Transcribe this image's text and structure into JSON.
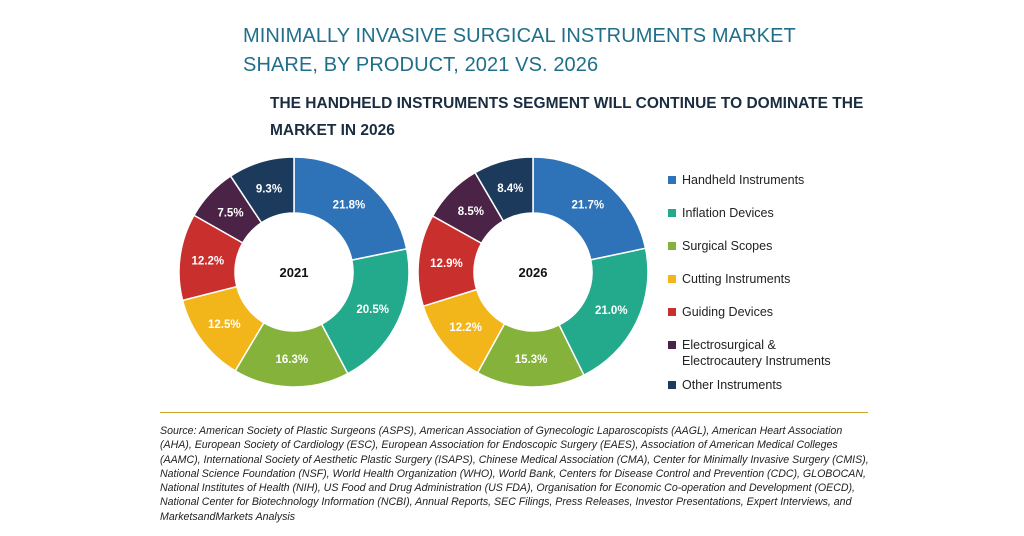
{
  "title": "MINIMALLY INVASIVE SURGICAL INSTRUMENTS MARKET SHARE, BY PRODUCT, 2021 VS. 2026",
  "subtitle": "THE HANDHELD INSTRUMENTS SEGMENT WILL CONTINUE TO DOMINATE THE MARKET IN 2026",
  "source": "Source: American Society of Plastic Surgeons (ASPS), American Association of Gynecologic Laparoscopists (AAGL), American Heart Association (AHA), European Society of Cardiology (ESC), European Association for Endoscopic Surgery (EAES), Association of American Medical Colleges (AAMC), International Society of Aesthetic Plastic Surgery (ISAPS), Chinese Medical Association (CMA), Center for Minimally Invasive Surgery (CMIS), National Science Foundation (NSF), World Health Organization (WHO), World Bank, Centers for Disease Control and Prevention (CDC), GLOBOCAN, National Institutes of Health (NIH), US Food and Drug Administration (US FDA), Organisation for Economic Co-operation and Development (OECD), National Center for Biotechnology Information (NCBI), Annual Reports, SEC Filings, Press Releases, Investor Presentations, Expert Interviews, and MarketsandMarkets Analysis",
  "chart_data": [
    {
      "type": "pie",
      "center_label": "2021",
      "categories": [
        "Handheld Instruments",
        "Inflation Devices",
        "Surgical Scopes",
        "Cutting Instruments",
        "Guiding Devices",
        "Electrosurgical & Electrocautery Instruments",
        "Other Instruments"
      ],
      "values": [
        21.8,
        20.5,
        16.3,
        12.5,
        12.2,
        7.5,
        9.3
      ],
      "labels": [
        "21.8%",
        "20.5%",
        "16.3%",
        "12.5%",
        "12.2%",
        "7.5%",
        "9.3%"
      ]
    },
    {
      "type": "pie",
      "center_label": "2026",
      "categories": [
        "Handheld Instruments",
        "Inflation Devices",
        "Surgical Scopes",
        "Cutting Instruments",
        "Guiding Devices",
        "Electrosurgical & Electrocautery Instruments",
        "Other Instruments"
      ],
      "values": [
        21.7,
        21.0,
        15.3,
        12.2,
        12.9,
        8.5,
        8.4
      ],
      "labels": [
        "21.7%",
        "21.0%",
        "15.3%",
        "12.2%",
        "12.9%",
        "8.5%",
        "8.4%"
      ]
    }
  ],
  "legend": {
    "placement": "right",
    "items": [
      {
        "label": "Handheld Instruments",
        "color": "#2e72b8"
      },
      {
        "label": "Inflation Devices",
        "color": "#23a98c"
      },
      {
        "label": "Surgical Scopes",
        "color": "#84b23a"
      },
      {
        "label": "Cutting Instruments",
        "color": "#f2b51a"
      },
      {
        "label": "Guiding Devices",
        "color": "#c92f2c"
      },
      {
        "label": "Electrosurgical &\nElectrocautery Instruments",
        "color": "#4a2347"
      },
      {
        "label": "Other Instruments",
        "color": "#1c3a5c"
      }
    ]
  }
}
